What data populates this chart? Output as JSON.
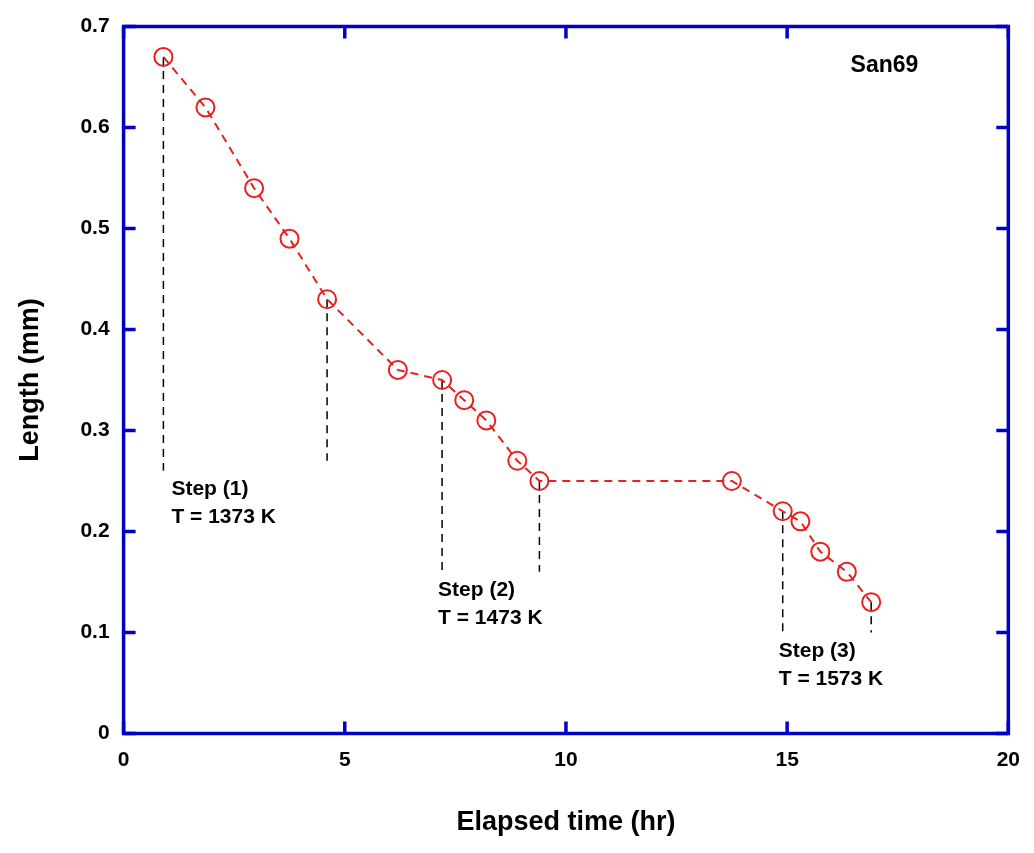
{
  "chart_data": {
    "type": "line",
    "xlabel": "Elapsed time (hr)",
    "ylabel": "Length (mm)",
    "xlim": [
      0,
      20
    ],
    "xticks": [
      0,
      5,
      10,
      15,
      20
    ],
    "ylim": [
      0,
      0.7
    ],
    "yticks": [
      0,
      0.1,
      0.2,
      0.3,
      0.4,
      0.5,
      0.6,
      0.7
    ],
    "grid": false,
    "legend": false,
    "series": [
      {
        "color": "#e8201e",
        "marker": "circle",
        "line_style": "dashed",
        "x": [
          0.9,
          1.85,
          2.95,
          3.75,
          4.6,
          6.2,
          7.2,
          7.7,
          8.2,
          8.9,
          9.4,
          13.75,
          14.9,
          15.3,
          15.75,
          16.35,
          16.9
        ],
        "values": [
          0.67,
          0.62,
          0.54,
          0.49,
          0.43,
          0.36,
          0.35,
          0.33,
          0.31,
          0.27,
          0.25,
          0.25,
          0.22,
          0.21,
          0.18,
          0.16,
          0.13
        ]
      },
      {
        "color": "#000000",
        "marker": "none",
        "line_style": "dashed",
        "x": [
          0.9,
          0.9
        ],
        "values": [
          0.67,
          0.26
        ]
      },
      {
        "color": "#000000",
        "marker": "none",
        "line_style": "dashed",
        "x": [
          4.6,
          4.6
        ],
        "values": [
          0.43,
          0.27
        ]
      },
      {
        "color": "#000000",
        "marker": "none",
        "line_style": "dashed",
        "x": [
          7.2,
          7.2
        ],
        "values": [
          0.35,
          0.16
        ]
      },
      {
        "color": "#000000",
        "marker": "none",
        "line_style": "dashed",
        "x": [
          9.4,
          9.4
        ],
        "values": [
          0.25,
          0.16
        ]
      },
      {
        "color": "#000000",
        "marker": "none",
        "line_style": "dashed",
        "x": [
          14.9,
          14.9
        ],
        "values": [
          0.22,
          0.1
        ]
      },
      {
        "color": "#000000",
        "marker": "none",
        "line_style": "dashed",
        "x": [
          16.9,
          16.9
        ],
        "values": [
          0.13,
          0.1
        ]
      }
    ],
    "annotations": [
      "San69",
      "Step (1)\nT = 1373 K",
      "Step (2)\nT = 1473 K",
      "Step (3)\nT = 1573 K"
    ]
  }
}
